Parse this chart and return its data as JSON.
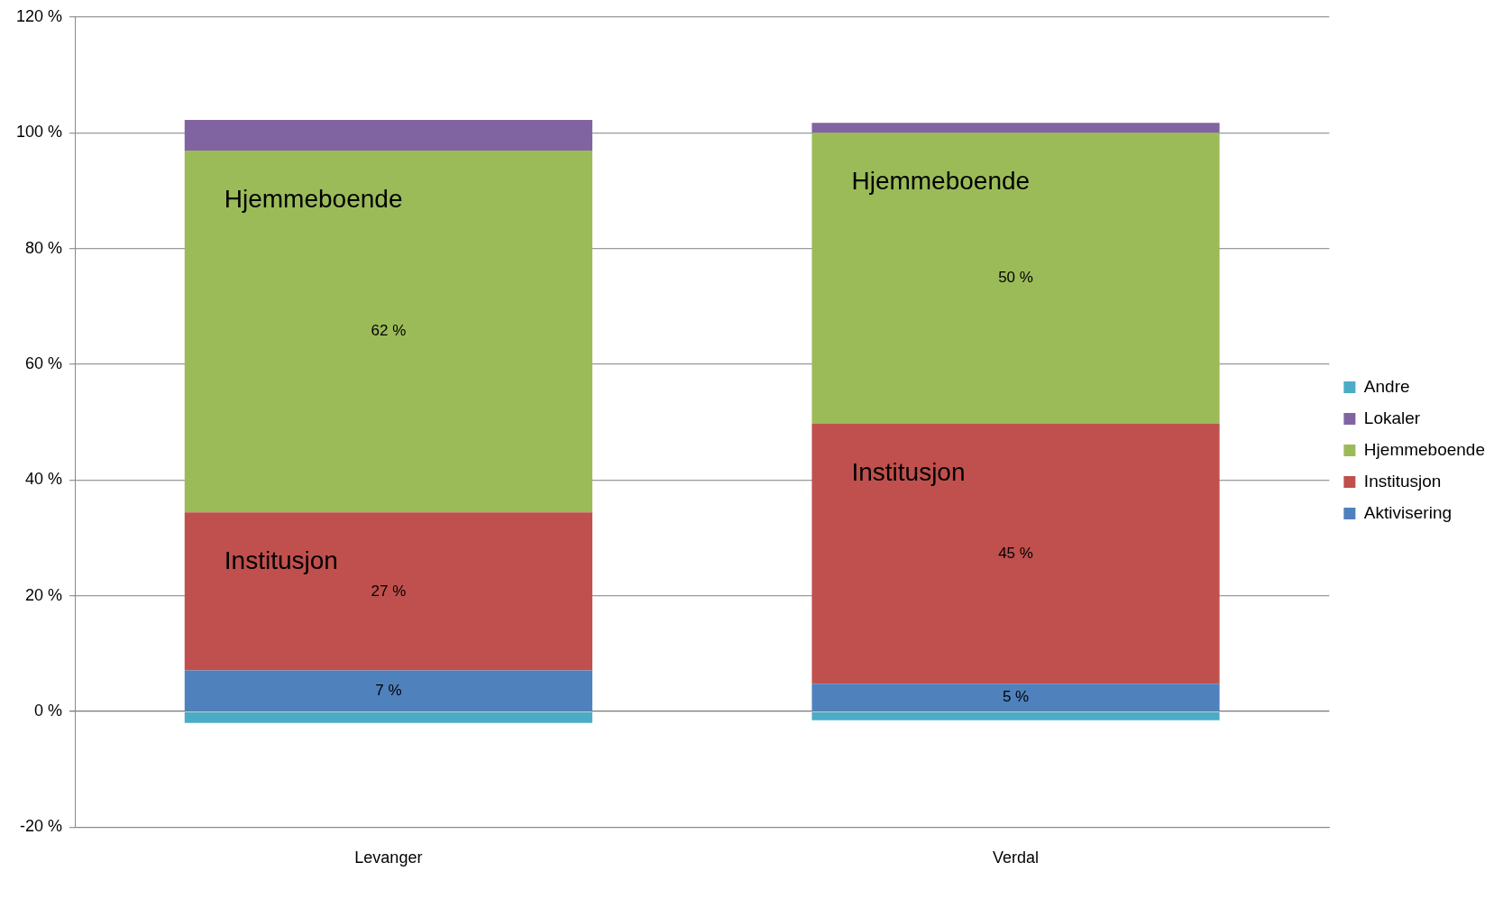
{
  "chart_data": {
    "type": "bar",
    "stacked": true,
    "categories": [
      "Levanger",
      "Verdal"
    ],
    "series": [
      {
        "name": "Aktivisering",
        "color": "#4f81bd",
        "values": [
          7.1,
          4.8
        ],
        "value_labels": [
          "7 %",
          "5 %"
        ]
      },
      {
        "name": "Institusjon",
        "color": "#c0504d",
        "values": [
          27.3,
          44.9
        ],
        "value_labels": [
          "27 %",
          "45 %"
        ]
      },
      {
        "name": "Hjemmeboende",
        "color": "#9bbb59",
        "values": [
          62.5,
          50.3
        ],
        "value_labels": [
          "62 %",
          "50 %"
        ]
      },
      {
        "name": "Lokaler",
        "color": "#8064a2",
        "values": [
          5.3,
          1.7
        ]
      },
      {
        "name": "Andre",
        "color": "#4bacc6",
        "values": [
          -2.0,
          -1.5
        ]
      }
    ],
    "ylim": [
      -20,
      120
    ],
    "yticks": [
      {
        "value": -20,
        "label": "-20 %"
      },
      {
        "value": 0,
        "label": "0 %"
      },
      {
        "value": 20,
        "label": "20 %"
      },
      {
        "value": 40,
        "label": "40 %"
      },
      {
        "value": 60,
        "label": "60 %"
      },
      {
        "value": 80,
        "label": "80 %"
      },
      {
        "value": 100,
        "label": "100 %"
      },
      {
        "value": 120,
        "label": "120 %"
      }
    ],
    "grid": "y",
    "legend": "right",
    "annotations": [
      "Hjemmeboende",
      "Institusjon",
      "Hjemmeboende",
      "Institusjon"
    ]
  }
}
